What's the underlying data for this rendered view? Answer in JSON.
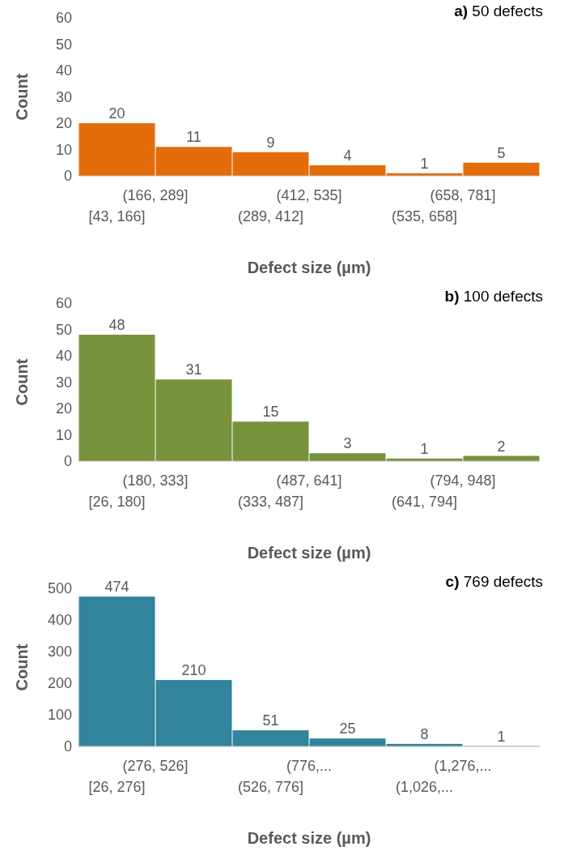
{
  "chart_data": [
    {
      "type": "bar",
      "title": "a) 50 defects",
      "xlabel": "Defect size (µm)",
      "ylabel": "Count",
      "categories": [
        "[43, 166]",
        "(166, 289]",
        "(289, 412]",
        "(412, 535]",
        "(535, 658]",
        "(658, 781]"
      ],
      "values": [
        20,
        11,
        9,
        4,
        1,
        5
      ],
      "color": "#e46c0a",
      "ylim": [
        0,
        60
      ],
      "yticks": [
        0,
        10,
        20,
        30,
        40,
        50,
        60
      ],
      "data_labels": true
    },
    {
      "type": "bar",
      "title": "b) 100 defects",
      "xlabel": "Defect size (µm)",
      "ylabel": "Count",
      "categories": [
        "[26, 180]",
        "(180, 333]",
        "(333, 487]",
        "(487, 641]",
        "(641, 794]",
        "(794, 948]"
      ],
      "values": [
        48,
        31,
        15,
        3,
        1,
        2
      ],
      "color": "#77933c",
      "ylim": [
        0,
        60
      ],
      "yticks": [
        0,
        10,
        20,
        30,
        40,
        50,
        60
      ],
      "data_labels": true
    },
    {
      "type": "bar",
      "title": "c) 769 defects",
      "xlabel": "Defect size (µm)",
      "ylabel": "Count",
      "categories": [
        "[26, 276]",
        "(276, 526]",
        "(526, 776]",
        "(776,...",
        "(1,026,...",
        "(1,276,..."
      ],
      "values": [
        474,
        210,
        51,
        25,
        8,
        1
      ],
      "color": "#31849b",
      "ylim": [
        0,
        500
      ],
      "yticks": [
        0,
        100,
        200,
        300,
        400,
        500
      ],
      "data_labels": true
    }
  ]
}
